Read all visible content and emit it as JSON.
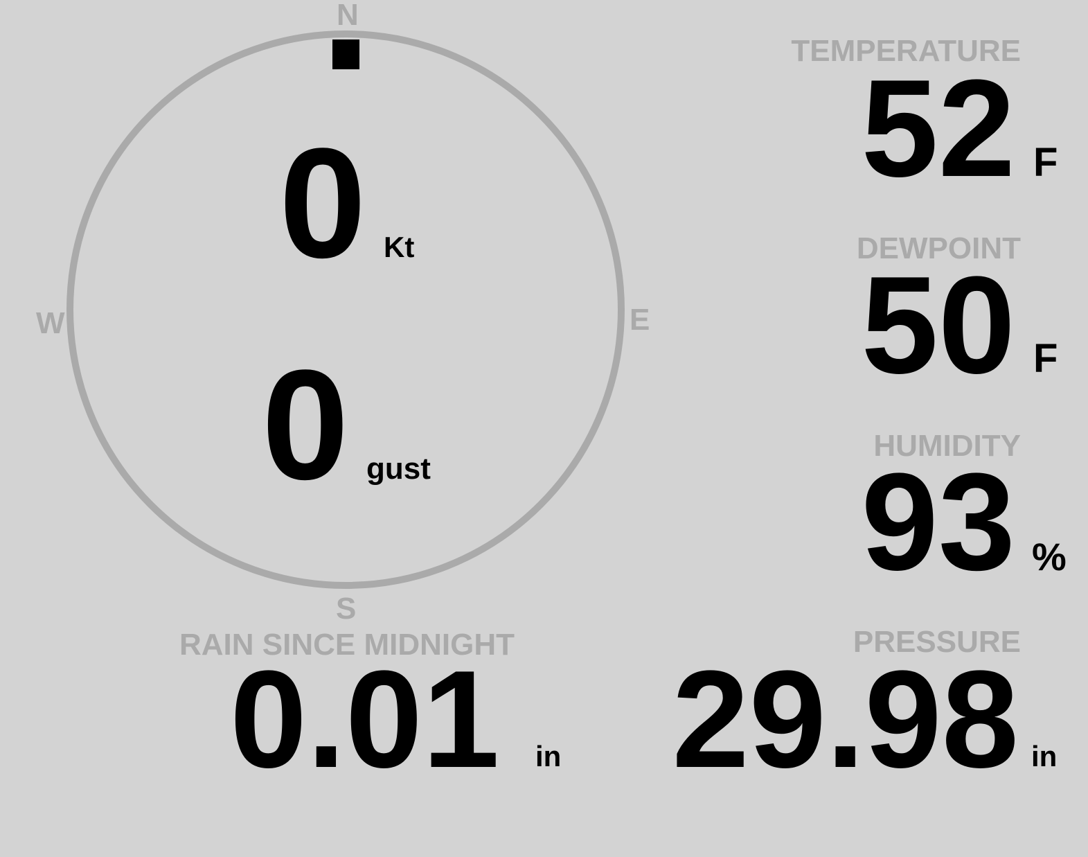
{
  "wind": {
    "speed": "0",
    "speed_unit": "Kt",
    "gust": "0",
    "gust_label": "gust",
    "direction_degrees": 0,
    "compass": {
      "n": "N",
      "e": "E",
      "s": "S",
      "w": "W"
    }
  },
  "temperature": {
    "label": "TEMPERATURE",
    "value": "52",
    "unit": "F"
  },
  "dewpoint": {
    "label": "DEWPOINT",
    "value": "50",
    "unit": "F"
  },
  "humidity": {
    "label": "HUMIDITY",
    "value": "93",
    "unit": "%"
  },
  "rain": {
    "label": "RAIN SINCE MIDNIGHT",
    "value": "0.01",
    "unit": "in"
  },
  "pressure": {
    "label": "PRESSURE",
    "value": "29.98",
    "unit": "in"
  },
  "colors": {
    "background": "#d3d3d3",
    "label": "#aaaaaa",
    "value": "#000000",
    "ring": "#aaaaaa"
  }
}
